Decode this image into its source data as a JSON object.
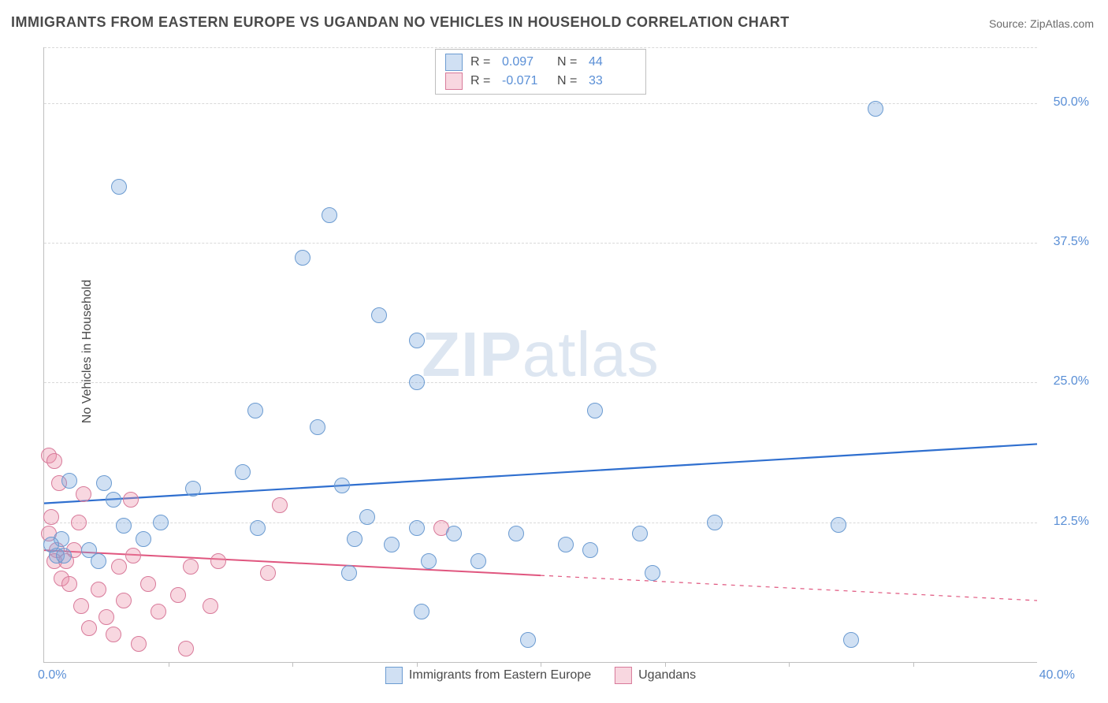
{
  "title": "IMMIGRANTS FROM EASTERN EUROPE VS UGANDAN NO VEHICLES IN HOUSEHOLD CORRELATION CHART",
  "source_label": "Source: ",
  "source_name": "ZipAtlas.com",
  "ylabel": "No Vehicles in Household",
  "watermark_a": "ZIP",
  "watermark_b": "atlas",
  "chart": {
    "type": "scatter",
    "background_color": "#ffffff",
    "grid_color": "#d9d9d9",
    "axis_color": "#bfbfbf",
    "xlim": [
      0.0,
      40.0
    ],
    "ylim": [
      0.0,
      55.0
    ],
    "ytick_values": [
      12.5,
      25.0,
      37.5,
      50.0
    ],
    "ytick_labels": [
      "12.5%",
      "25.0%",
      "37.5%",
      "50.0%"
    ],
    "xtick_values": [
      5,
      10,
      15,
      20,
      25,
      30,
      35
    ],
    "x_min_label": "0.0%",
    "x_max_label": "40.0%",
    "ytick_label_color": "#5a8fd6",
    "ytick_label_fontsize": 16,
    "label_fontsize": 16,
    "title_fontsize": 18,
    "title_color": "#4a4a4a",
    "dot_radius": 10,
    "dot_border_width": 1.2,
    "series": [
      {
        "name": "Immigrants from Eastern Europe",
        "fill": "rgba(120,165,220,0.35)",
        "stroke": "#6b9bd1",
        "R": "0.097",
        "N": "44",
        "trend": {
          "x1": 0,
          "y1": 14.2,
          "x2": 40,
          "y2": 19.5,
          "color": "#2f6fcf",
          "width": 2.2,
          "solid_to_x": 40
        },
        "points": [
          [
            3.0,
            42.5
          ],
          [
            11.5,
            40.0
          ],
          [
            10.4,
            36.2
          ],
          [
            13.5,
            31.0
          ],
          [
            15.0,
            28.8
          ],
          [
            15.0,
            25.0
          ],
          [
            8.5,
            22.5
          ],
          [
            11.0,
            21.0
          ],
          [
            8.0,
            17.0
          ],
          [
            8.6,
            12.0
          ],
          [
            2.4,
            16.0
          ],
          [
            2.8,
            14.5
          ],
          [
            3.2,
            12.2
          ],
          [
            4.7,
            12.5
          ],
          [
            4.0,
            11.0
          ],
          [
            6.0,
            15.5
          ],
          [
            12.0,
            15.8
          ],
          [
            12.5,
            11.0
          ],
          [
            12.3,
            8.0
          ],
          [
            13.0,
            13.0
          ],
          [
            14.0,
            10.5
          ],
          [
            15.0,
            12.0
          ],
          [
            15.5,
            9.0
          ],
          [
            15.2,
            4.5
          ],
          [
            16.5,
            11.5
          ],
          [
            17.5,
            9.0
          ],
          [
            19.0,
            11.5
          ],
          [
            19.5,
            2.0
          ],
          [
            21.0,
            10.5
          ],
          [
            22.0,
            10.0
          ],
          [
            22.2,
            22.5
          ],
          [
            24.0,
            11.5
          ],
          [
            24.5,
            8.0
          ],
          [
            27.0,
            12.5
          ],
          [
            32.0,
            12.3
          ],
          [
            33.5,
            49.5
          ],
          [
            32.5,
            2.0
          ],
          [
            0.7,
            11.0
          ],
          [
            0.5,
            9.5
          ],
          [
            1.8,
            10.0
          ],
          [
            0.3,
            10.5
          ],
          [
            0.8,
            9.5
          ],
          [
            1.0,
            16.2
          ],
          [
            2.2,
            9.0
          ]
        ]
      },
      {
        "name": "Ugandans",
        "fill": "rgba(235,140,165,0.35)",
        "stroke": "#d87a9a",
        "R": "-0.071",
        "N": "33",
        "trend": {
          "x1": 0,
          "y1": 10.0,
          "x2": 40,
          "y2": 5.5,
          "color": "#e0567f",
          "width": 2,
          "solid_to_x": 20
        },
        "points": [
          [
            0.2,
            18.5
          ],
          [
            0.4,
            18.0
          ],
          [
            0.6,
            16.0
          ],
          [
            0.3,
            13.0
          ],
          [
            0.2,
            11.5
          ],
          [
            0.5,
            10.0
          ],
          [
            0.4,
            9.0
          ],
          [
            0.7,
            7.5
          ],
          [
            0.9,
            9.0
          ],
          [
            1.2,
            10.0
          ],
          [
            1.4,
            12.5
          ],
          [
            1.6,
            15.0
          ],
          [
            1.0,
            7.0
          ],
          [
            1.5,
            5.0
          ],
          [
            1.8,
            3.0
          ],
          [
            2.2,
            6.5
          ],
          [
            2.5,
            4.0
          ],
          [
            2.8,
            2.5
          ],
          [
            3.0,
            8.5
          ],
          [
            3.2,
            5.5
          ],
          [
            3.5,
            14.5
          ],
          [
            3.6,
            9.5
          ],
          [
            3.8,
            1.6
          ],
          [
            4.2,
            7.0
          ],
          [
            4.6,
            4.5
          ],
          [
            5.4,
            6.0
          ],
          [
            5.7,
            1.2
          ],
          [
            5.9,
            8.5
          ],
          [
            6.7,
            5.0
          ],
          [
            7.0,
            9.0
          ],
          [
            9.0,
            8.0
          ],
          [
            9.5,
            14.0
          ],
          [
            16.0,
            12.0
          ]
        ]
      }
    ],
    "bottom_legend": [
      {
        "label": "Immigrants from Eastern Europe",
        "fill": "rgba(120,165,220,0.35)",
        "stroke": "#6b9bd1"
      },
      {
        "label": "Ugandans",
        "fill": "rgba(235,140,165,0.35)",
        "stroke": "#d87a9a"
      }
    ]
  }
}
